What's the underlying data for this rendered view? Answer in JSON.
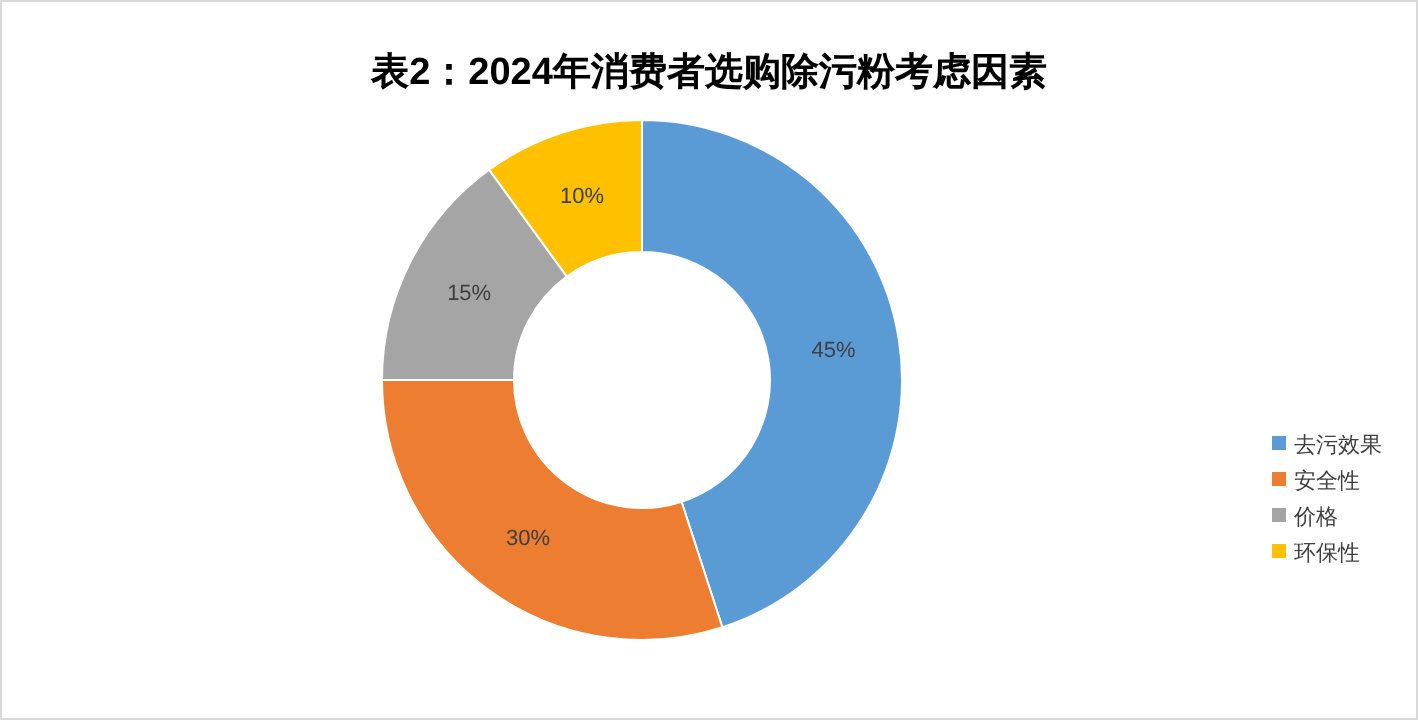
{
  "chart_data": {
    "type": "donut",
    "title": "表2：2024年消费者选购除污粉考虑因素",
    "categories": [
      "去污效果",
      "安全性",
      "价格",
      "环保性"
    ],
    "values": [
      45,
      30,
      15,
      10
    ],
    "colors": [
      "#5b9bd5",
      "#ed7d31",
      "#a5a5a5",
      "#ffc000"
    ],
    "value_labels": [
      "45%",
      "30%",
      "15%",
      "10%"
    ],
    "legend": "right"
  }
}
